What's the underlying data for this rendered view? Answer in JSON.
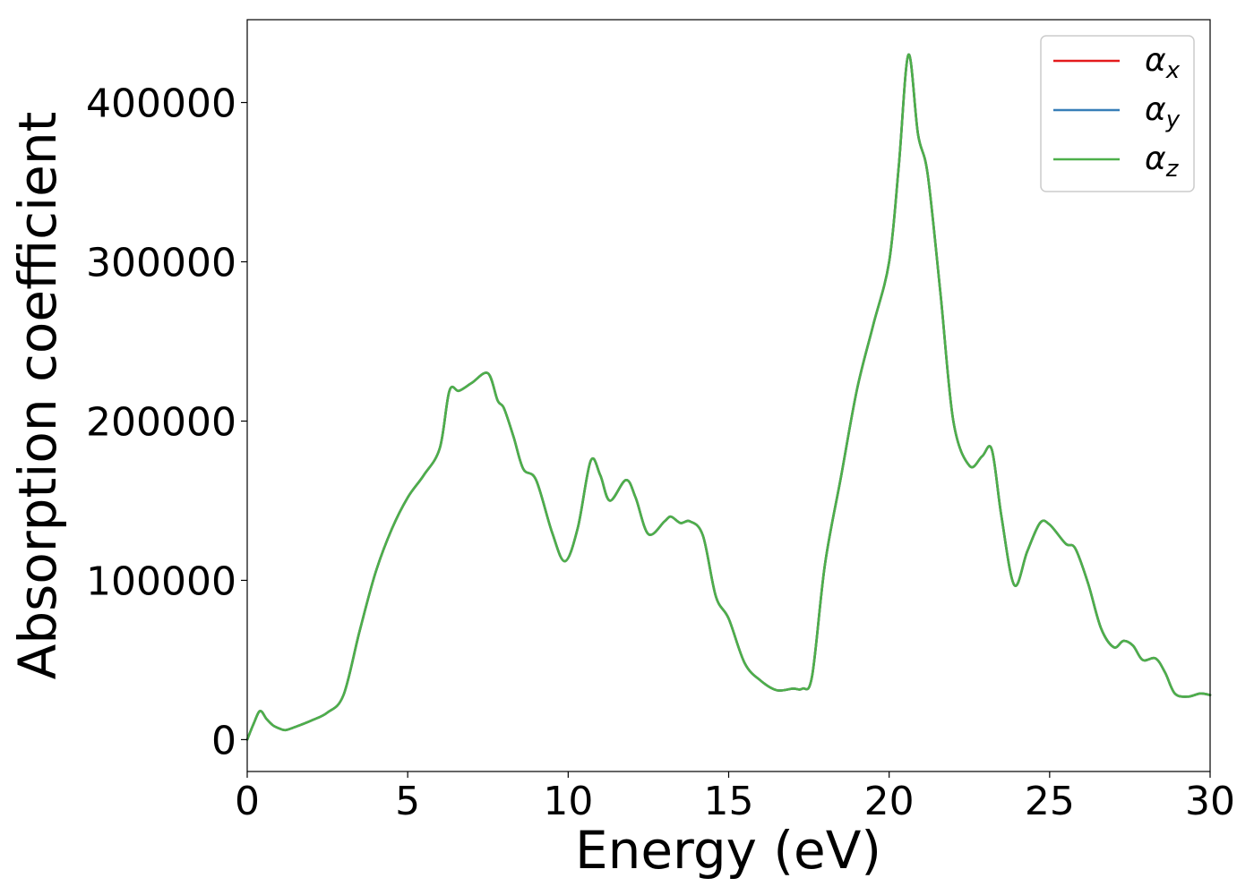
{
  "chart_data": {
    "type": "line",
    "title": "",
    "xlabel": "Energy (eV)",
    "ylabel": "Absorption coefficient",
    "xlim": [
      0,
      30
    ],
    "ylim": [
      -20000,
      452000
    ],
    "xticks": [
      0,
      5,
      10,
      15,
      20,
      25,
      30
    ],
    "yticks": [
      0,
      100000,
      200000,
      300000,
      400000
    ],
    "xtick_labels": [
      "0",
      "5",
      "10",
      "15",
      "20",
      "25",
      "30"
    ],
    "ytick_labels": [
      "0",
      "100000",
      "200000",
      "300000",
      "400000"
    ],
    "grid": false,
    "legend_position": "top-right",
    "x": [
      0,
      0.2,
      0.4,
      0.6,
      0.8,
      1.0,
      1.2,
      1.5,
      2.0,
      2.5,
      3.0,
      3.5,
      4.0,
      4.5,
      5.0,
      5.5,
      6.0,
      6.3,
      6.6,
      7.0,
      7.5,
      7.8,
      8.0,
      8.3,
      8.6,
      9.0,
      9.5,
      9.9,
      10.3,
      10.7,
      11.0,
      11.3,
      11.8,
      12.1,
      12.5,
      13.0,
      13.2,
      13.5,
      13.8,
      14.2,
      14.6,
      15.0,
      15.5,
      16.0,
      16.5,
      17.0,
      17.3,
      17.6,
      18.0,
      18.5,
      19.0,
      19.5,
      20.0,
      20.3,
      20.6,
      20.9,
      21.2,
      21.6,
      22.0,
      22.5,
      22.9,
      23.2,
      23.5,
      23.9,
      24.3,
      24.7,
      25.0,
      25.5,
      25.8,
      26.2,
      26.6,
      27.0,
      27.3,
      27.6,
      27.9,
      28.3,
      28.6,
      28.9,
      29.3,
      29.7,
      30.0
    ],
    "series": [
      {
        "name": "αx",
        "color": "#e41a1c",
        "values": [
          0,
          10000,
          18000,
          13000,
          9000,
          7000,
          6000,
          8000,
          12000,
          17000,
          28000,
          68000,
          105000,
          132000,
          152000,
          166000,
          183000,
          219000,
          219000,
          224000,
          230000,
          213000,
          208000,
          190000,
          170000,
          163000,
          130000,
          112000,
          133000,
          175000,
          166000,
          150000,
          163000,
          152000,
          129000,
          137000,
          140000,
          136000,
          137000,
          128000,
          90000,
          76000,
          48000,
          37000,
          31000,
          32000,
          32000,
          40000,
          110000,
          165000,
          220000,
          260000,
          300000,
          360000,
          430000,
          380000,
          355000,
          280000,
          200000,
          172000,
          178000,
          182000,
          140000,
          97000,
          118000,
          136000,
          135000,
          123000,
          120000,
          98000,
          70000,
          58000,
          62000,
          59000,
          50000,
          51000,
          42000,
          29000,
          27000,
          29000,
          28000
        ]
      },
      {
        "name": "αy",
        "color": "#377eb8",
        "values": [
          0,
          10000,
          18000,
          13000,
          9000,
          7000,
          6000,
          8000,
          12000,
          17000,
          28000,
          68000,
          105000,
          132000,
          152000,
          166000,
          183000,
          219000,
          219000,
          224000,
          230000,
          213000,
          208000,
          190000,
          170000,
          163000,
          130000,
          112000,
          133000,
          175000,
          166000,
          150000,
          163000,
          152000,
          129000,
          137000,
          140000,
          136000,
          137000,
          128000,
          90000,
          76000,
          48000,
          37000,
          31000,
          32000,
          32000,
          40000,
          110000,
          165000,
          220000,
          260000,
          300000,
          360000,
          430000,
          380000,
          355000,
          280000,
          200000,
          172000,
          178000,
          182000,
          140000,
          97000,
          118000,
          136000,
          135000,
          123000,
          120000,
          98000,
          70000,
          58000,
          62000,
          59000,
          50000,
          51000,
          42000,
          29000,
          27000,
          29000,
          28000
        ]
      },
      {
        "name": "αz",
        "color": "#4daf4a",
        "values": [
          0,
          10000,
          18000,
          13000,
          9000,
          7000,
          6000,
          8000,
          12000,
          17000,
          28000,
          68000,
          105000,
          132000,
          152000,
          166000,
          183000,
          219000,
          219000,
          224000,
          230000,
          213000,
          208000,
          190000,
          170000,
          163000,
          130000,
          112000,
          133000,
          175000,
          166000,
          150000,
          163000,
          152000,
          129000,
          137000,
          140000,
          136000,
          137000,
          128000,
          90000,
          76000,
          48000,
          37000,
          31000,
          32000,
          32000,
          40000,
          110000,
          165000,
          220000,
          260000,
          300000,
          360000,
          430000,
          380000,
          355000,
          280000,
          200000,
          172000,
          178000,
          182000,
          140000,
          97000,
          118000,
          136000,
          135000,
          123000,
          120000,
          98000,
          70000,
          58000,
          62000,
          59000,
          50000,
          51000,
          42000,
          29000,
          27000,
          29000,
          28000
        ]
      }
    ],
    "legend": [
      {
        "symbol": "α",
        "subscript": "x",
        "color": "#e41a1c"
      },
      {
        "symbol": "α",
        "subscript": "y",
        "color": "#377eb8"
      },
      {
        "symbol": "α",
        "subscript": "z",
        "color": "#4daf4a"
      }
    ]
  }
}
